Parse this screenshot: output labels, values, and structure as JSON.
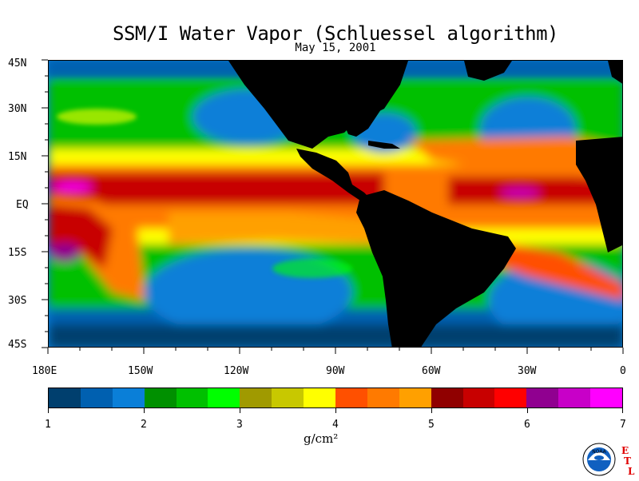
{
  "map": {
    "title": "SSM/I Water Vapor (Schluessel algorithm)",
    "date": "May 15, 2001",
    "region": {
      "lon_west": -180,
      "lon_east": 0,
      "lat_south": -45,
      "lat_north": 45
    },
    "land_color": "#000000",
    "lat_labels": [
      {
        "lat": 45,
        "text": "45N"
      },
      {
        "lat": 30,
        "text": "30N"
      },
      {
        "lat": 15,
        "text": "15N"
      },
      {
        "lat": 0,
        "text": "EQ"
      },
      {
        "lat": -15,
        "text": "15S"
      },
      {
        "lat": -30,
        "text": "30S"
      },
      {
        "lat": -45,
        "text": "45S"
      }
    ],
    "lon_labels": [
      {
        "lon": -180,
        "text": "180E"
      },
      {
        "lon": -150,
        "text": "150W"
      },
      {
        "lon": -120,
        "text": "120W"
      },
      {
        "lon": -90,
        "text": "90W"
      },
      {
        "lon": -60,
        "text": "60W"
      },
      {
        "lon": -30,
        "text": "30W"
      },
      {
        "lon": 0,
        "text": "0"
      }
    ]
  },
  "colorbar": {
    "min": 1,
    "max": 7,
    "unit_label": "g/cm²",
    "ticks": [
      "1",
      "2",
      "3",
      "4",
      "5",
      "6",
      "7"
    ],
    "colors": [
      "#003f6e",
      "#0060b0",
      "#0a7fd8",
      "#009000",
      "#00c000",
      "#00ff00",
      "#a09a00",
      "#c8c800",
      "#ffff00",
      "#ff5000",
      "#ff7a00",
      "#ffa000",
      "#900000",
      "#c80000",
      "#ff0000",
      "#900090",
      "#c800c8",
      "#ff00ff"
    ]
  },
  "logo": {
    "agency": "NOAA",
    "lab_letters": [
      "E",
      "T",
      "L"
    ]
  }
}
